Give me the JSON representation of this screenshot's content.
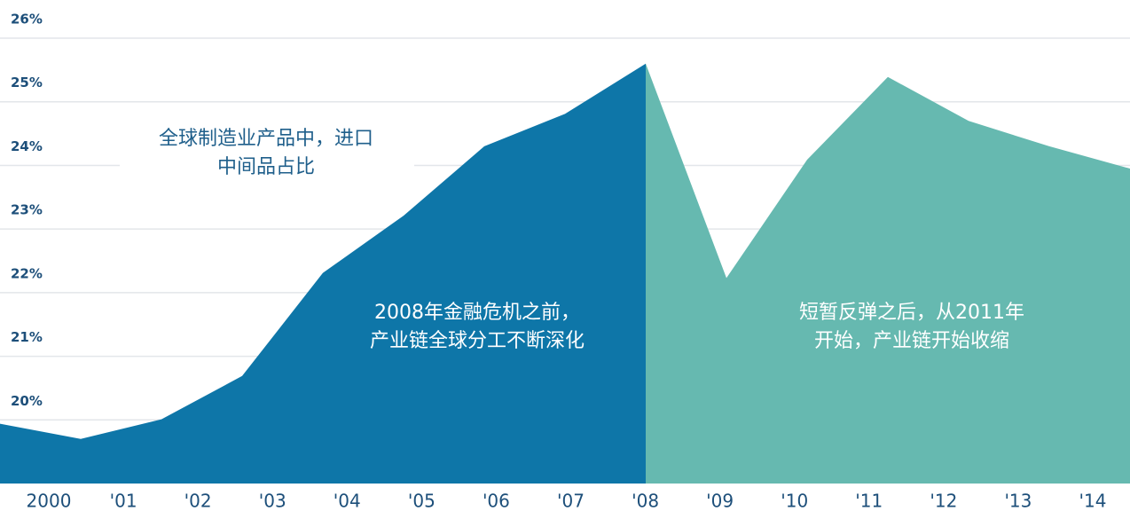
{
  "chart_data": {
    "type": "area",
    "categories": [
      "2000",
      "'01",
      "'02",
      "'03",
      "'04",
      "'05",
      "'06",
      "'07",
      "'08",
      "'09",
      "'10",
      "'11",
      "'12",
      "'13",
      "'14"
    ],
    "series": [
      {
        "color": "#0e76a8",
        "values": [
          19.94,
          19.7,
          20.01,
          20.69,
          22.31,
          23.21,
          24.3,
          24.81,
          25.6,
          null,
          null,
          null,
          null,
          null,
          null
        ]
      },
      {
        "color": "#66b9b0",
        "values": [
          null,
          null,
          null,
          null,
          null,
          null,
          null,
          null,
          25.6,
          22.23,
          24.09,
          25.39,
          24.7,
          24.3,
          23.95
        ]
      }
    ],
    "ylim": [
      19,
      26.6
    ],
    "yticks": [
      {
        "value": 20,
        "label": "20%"
      },
      {
        "value": 21,
        "label": "21%"
      },
      {
        "value": 22,
        "label": "22%"
      },
      {
        "value": 23,
        "label": "23%"
      },
      {
        "value": 24,
        "label": "24%"
      },
      {
        "value": 25,
        "label": "25%"
      },
      {
        "value": 26,
        "label": "26%"
      }
    ],
    "grid": true,
    "annotations": [
      [
        "全球制造业产品中，进口",
        "中间品占比"
      ],
      [
        "2008年金融危机之前，",
        "产业链全球分工不断深化"
      ],
      [
        "短暂反弹之后，从2011年",
        "开始，产业链开始收缩"
      ]
    ]
  }
}
